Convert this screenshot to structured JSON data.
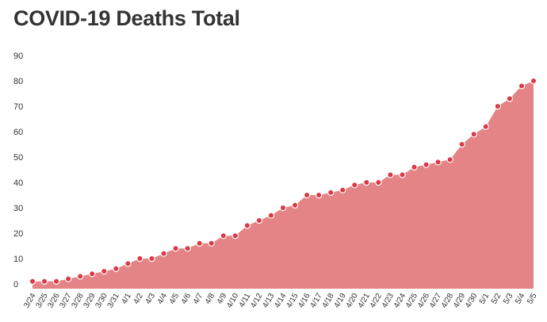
{
  "chart_data": {
    "type": "area",
    "title": "COVID-19 Deaths Total",
    "xlabel": "",
    "ylabel": "",
    "ylim": [
      0,
      90
    ],
    "yticks": [
      0,
      10,
      20,
      30,
      40,
      50,
      60,
      70,
      80,
      90
    ],
    "grid": false,
    "categories": [
      "3/24",
      "3/25",
      "3/26",
      "3/27",
      "3/28",
      "3/29",
      "3/30",
      "3/31",
      "4/1",
      "4/2",
      "4/3",
      "4/4",
      "4/5",
      "4/6",
      "4/7",
      "4/8",
      "4/9",
      "4/10",
      "4/11",
      "4/12",
      "4/13",
      "4/14",
      "4/15",
      "4/16",
      "4/17",
      "4/18",
      "4/19",
      "4/20",
      "4/21",
      "4/22",
      "4/23",
      "4/24",
      "4/25",
      "4/26",
      "4/27",
      "4/28",
      "4/29",
      "4/30",
      "5/1",
      "5/2",
      "5/3",
      "5/4",
      "5/5"
    ],
    "values": [
      1,
      1,
      1,
      2,
      3,
      4,
      5,
      6,
      8,
      10,
      10,
      12,
      14,
      14,
      16,
      16,
      19,
      19,
      23,
      25,
      27,
      30,
      31,
      35,
      35,
      36,
      37,
      39,
      40,
      40,
      43,
      43,
      46,
      47,
      48,
      49,
      55,
      59,
      62,
      70,
      73,
      78,
      80
    ],
    "colors": {
      "fill": "#e58486",
      "marker": "#d93a45",
      "marker_stroke": "#ffffff",
      "text": "#333333"
    }
  }
}
